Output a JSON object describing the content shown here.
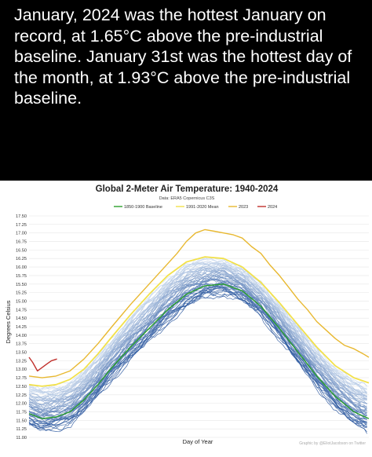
{
  "post": {
    "text": "January, 2024 was the hottest January on record, at 1.65°C above the pre-industrial baseline. January 31st was the hottest day of the month, at 1.93°C above the pre-industrial baseline."
  },
  "credit": "Graphic by @EliotJacobson on Twitter",
  "chart_data": {
    "type": "line",
    "title": "Global 2-Meter Air Temperature: 1940-2024",
    "subtitle": "Data: ERA5 Copernicus C3S",
    "xlabel": "Day of Year",
    "ylabel": "Degrees Celsius",
    "xlim": [
      1,
      366
    ],
    "ylim": [
      11.0,
      17.5
    ],
    "yticks": [
      "17.50",
      "17.25",
      "17.00",
      "16.75",
      "16.50",
      "16.25",
      "16.00",
      "15.75",
      "15.50",
      "15.25",
      "15.00",
      "14.75",
      "14.50",
      "14.25",
      "14.00",
      "13.75",
      "13.50",
      "13.25",
      "13.00",
      "12.75",
      "12.50",
      "12.25",
      "12.00",
      "11.75",
      "11.50",
      "11.25",
      "11.00"
    ],
    "grid": true,
    "legend_position": "top",
    "background_series_years": "1940-2022",
    "background_colors": [
      "#1f4e99",
      "#c9d9ee"
    ],
    "series": [
      {
        "name": "1850-1900 Baseline",
        "color": "#2ca02c",
        "x": [
          1,
          15,
          30,
          45,
          60,
          75,
          90,
          110,
          130,
          150,
          170,
          190,
          210,
          230,
          250,
          270,
          290,
          310,
          330,
          350,
          366
        ],
        "values": [
          11.7,
          11.55,
          11.6,
          11.75,
          12.1,
          12.55,
          13.05,
          13.65,
          14.2,
          14.75,
          15.2,
          15.45,
          15.5,
          15.3,
          14.85,
          14.2,
          13.5,
          12.8,
          12.2,
          11.75,
          11.55
        ]
      },
      {
        "name": "1991-2020 Mean",
        "color": "#f2e14b",
        "x": [
          1,
          15,
          30,
          45,
          60,
          75,
          90,
          110,
          130,
          150,
          170,
          190,
          210,
          230,
          250,
          270,
          290,
          310,
          330,
          350,
          366
        ],
        "values": [
          12.55,
          12.5,
          12.55,
          12.7,
          13.0,
          13.45,
          13.95,
          14.6,
          15.2,
          15.75,
          16.15,
          16.3,
          16.25,
          16.0,
          15.55,
          14.95,
          14.3,
          13.65,
          13.1,
          12.75,
          12.6
        ]
      },
      {
        "name": "2023",
        "color": "#e8b830",
        "x": [
          1,
          15,
          30,
          45,
          60,
          75,
          90,
          110,
          130,
          150,
          160,
          170,
          180,
          190,
          200,
          210,
          220,
          230,
          240,
          250,
          260,
          270,
          280,
          290,
          300,
          310,
          320,
          330,
          340,
          350,
          360,
          366
        ],
        "values": [
          12.8,
          12.75,
          12.8,
          12.95,
          13.3,
          13.75,
          14.25,
          14.9,
          15.5,
          16.1,
          16.4,
          16.75,
          17.0,
          17.1,
          17.05,
          17.0,
          16.95,
          16.85,
          16.6,
          16.4,
          16.05,
          15.75,
          15.4,
          15.05,
          14.75,
          14.4,
          14.15,
          13.9,
          13.7,
          13.6,
          13.45,
          13.35
        ]
      },
      {
        "name": "2024",
        "color": "#c0302c",
        "x": [
          1,
          5,
          10,
          15,
          20,
          25,
          31
        ],
        "values": [
          13.35,
          13.2,
          12.95,
          13.05,
          13.15,
          13.25,
          13.3
        ]
      }
    ]
  }
}
